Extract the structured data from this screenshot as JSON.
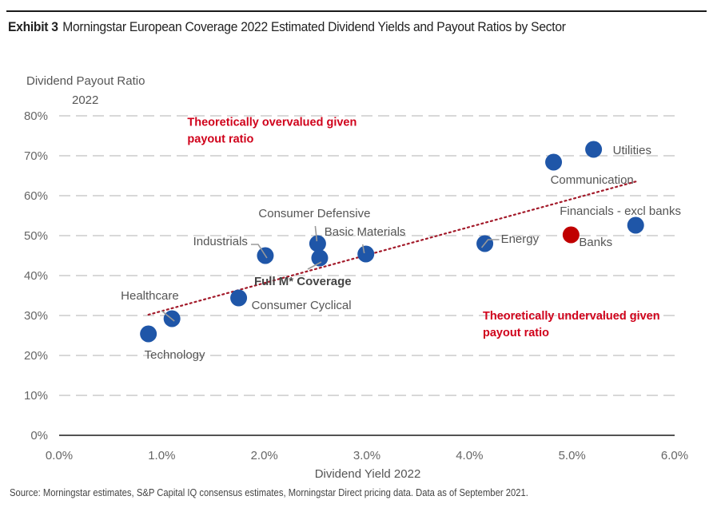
{
  "header": {
    "exhibit": "Exhibit 3",
    "title": "Morningstar European Coverage 2022 Estimated Dividend Yields and Payout Ratios by Sector"
  },
  "footer": {
    "source": "Source: Morningstar estimates, S&P Capital IQ consensus estimates, Morningstar Direct pricing data. Data as of September 2021."
  },
  "chart_data": {
    "type": "scatter",
    "title": "Morningstar European Coverage 2022 Estimated Dividend Yields and Payout Ratios by Sector",
    "xlabel": "Dividend Yield 2022",
    "ylabel": [
      "Dividend Payout Ratio",
      "2022"
    ],
    "xlim": [
      0,
      6
    ],
    "ylim": [
      0,
      80
    ],
    "x_ticks": [
      "0.0%",
      "1.0%",
      "2.0%",
      "3.0%",
      "4.0%",
      "5.0%",
      "6.0%"
    ],
    "y_ticks": [
      "0%",
      "10%",
      "20%",
      "30%",
      "40%",
      "50%",
      "60%",
      "70%",
      "80%"
    ],
    "grid": "horizontal-dashed",
    "colors": {
      "sector": "#1f56a8",
      "banks": "#c00000",
      "trend": "#a31a2a",
      "annotation": "#d0021b",
      "grid": "#cccccc"
    },
    "points": [
      {
        "name": "Utilities",
        "x": 5.21,
        "y": 71.6,
        "color": "sector"
      },
      {
        "name": "Communication",
        "x": 4.82,
        "y": 68.4,
        "color": "sector"
      },
      {
        "name": "Financials - excl banks",
        "x": 5.62,
        "y": 52.6,
        "color": "sector"
      },
      {
        "name": "Banks",
        "x": 4.99,
        "y": 50.2,
        "color": "banks"
      },
      {
        "name": "Energy",
        "x": 4.15,
        "y": 48.0,
        "color": "sector"
      },
      {
        "name": "Basic Materials",
        "x": 2.99,
        "y": 45.4,
        "color": "sector"
      },
      {
        "name": "Consumer Defensive",
        "x": 2.52,
        "y": 48.0,
        "color": "sector"
      },
      {
        "name": "Full M* Coverage",
        "x": 2.54,
        "y": 44.4,
        "color": "sector"
      },
      {
        "name": "Industrials",
        "x": 2.01,
        "y": 45.0,
        "color": "sector"
      },
      {
        "name": "Consumer Cyclical",
        "x": 1.75,
        "y": 34.4,
        "color": "sector"
      },
      {
        "name": "Healthcare",
        "x": 1.1,
        "y": 29.2,
        "color": "sector"
      },
      {
        "name": "Technology",
        "x": 0.87,
        "y": 25.4,
        "color": "sector"
      }
    ],
    "trendline": {
      "style": "dotted",
      "from": {
        "x": 0.87,
        "y": 30.2
      },
      "to": {
        "x": 5.63,
        "y": 63.6
      }
    },
    "annotations": [
      {
        "lines": [
          "Theoretically overvalued given",
          "payout ratio"
        ],
        "x": 1.25,
        "y": 77.5
      },
      {
        "lines": [
          "Theoretically undervalued given",
          "payout ratio"
        ],
        "x": 4.13,
        "y": 29.0
      }
    ]
  }
}
